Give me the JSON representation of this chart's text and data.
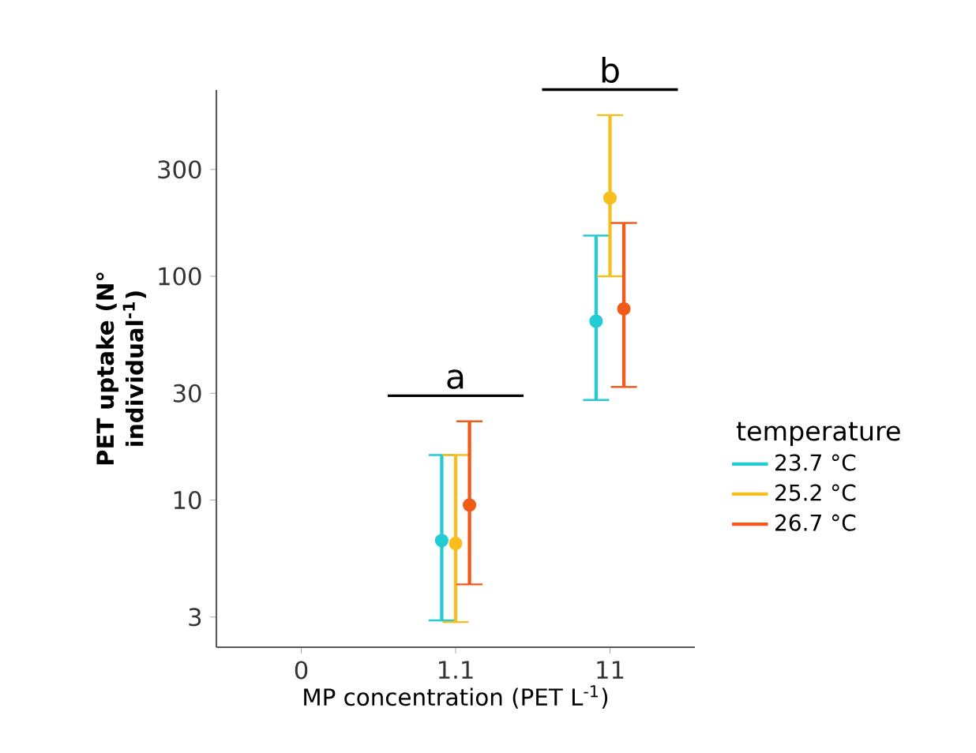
{
  "chart_data": {
    "type": "scatter",
    "xlabel": "MP concentration  (PET L$^{-1}$)",
    "ylabel": "PET uptake (N° individual$^{-1}$)",
    "legend_title": "temperature",
    "categories": [
      "0",
      "1.1",
      "11"
    ],
    "series": [
      {
        "name": "23.7 °C",
        "color": "#22ccd4",
        "values": [
          null,
          6.6,
          63
        ],
        "errors": [
          null,
          [
            2.9,
            15.9
          ],
          [
            28,
            152
          ]
        ]
      },
      {
        "name": "25.2 °C",
        "color": "#f8be1e",
        "values": [
          null,
          6.4,
          224
        ],
        "errors": [
          null,
          [
            2.85,
            15.9
          ],
          [
            100,
            525
          ]
        ]
      },
      {
        "name": "26.7 °C",
        "color": "#f25a1a",
        "values": [
          null,
          9.5,
          71.5
        ],
        "errors": [
          null,
          [
            4.2,
            22.5
          ],
          [
            32,
            173
          ]
        ]
      }
    ],
    "ylim": [
      2.2,
      680
    ],
    "yticks": [
      3,
      10,
      30,
      100,
      300
    ],
    "log": "y",
    "grid": false,
    "legend": "right",
    "marker": "circle",
    "annotations": [
      "a",
      "b"
    ]
  }
}
